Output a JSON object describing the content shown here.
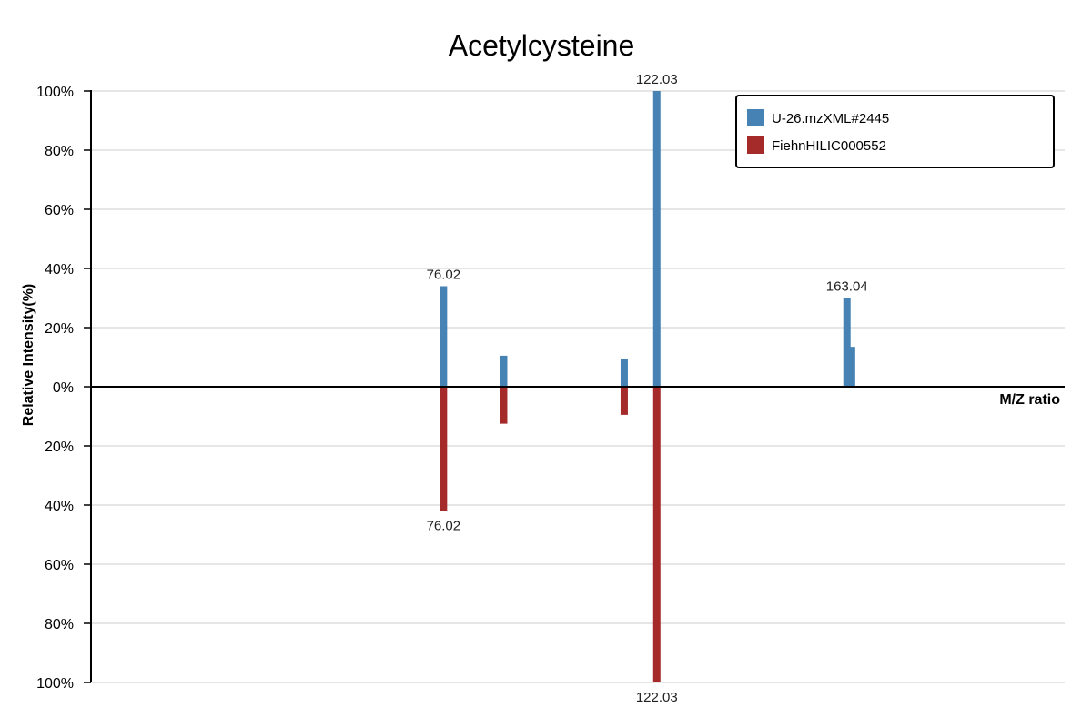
{
  "chart_data": {
    "type": "bar",
    "title": "Acetylcysteine",
    "xlabel": "M/Z ratio",
    "ylabel": "Relative Intensity(%)",
    "xlim": [
      0,
      210
    ],
    "ylim": [
      -100,
      100
    ],
    "yticks": [
      {
        "value": 100,
        "label": "100%"
      },
      {
        "value": 80,
        "label": "80%"
      },
      {
        "value": 60,
        "label": "60%"
      },
      {
        "value": 40,
        "label": "40%"
      },
      {
        "value": 20,
        "label": "20%"
      },
      {
        "value": 0,
        "label": "0%"
      },
      {
        "value": -20,
        "label": "20%"
      },
      {
        "value": -40,
        "label": "40%"
      },
      {
        "value": -60,
        "label": "60%"
      },
      {
        "value": -80,
        "label": "80%"
      },
      {
        "value": -100,
        "label": "100%"
      }
    ],
    "grid": true,
    "legend_position": "top-right",
    "colors": {
      "top": "#4682b4",
      "bottom": "#a52a2a"
    },
    "series": [
      {
        "name": "U-26.mzXML#2445",
        "direction": "up",
        "color": "#4682b4",
        "peaks": [
          {
            "mz": 76.02,
            "intensity": 34,
            "label": "76.02"
          },
          {
            "mz": 89.0,
            "intensity": 10.5
          },
          {
            "mz": 115.0,
            "intensity": 9.5
          },
          {
            "mz": 122.03,
            "intensity": 100,
            "label": "122.03"
          },
          {
            "mz": 163.04,
            "intensity": 30,
            "label": "163.04"
          },
          {
            "mz": 164.04,
            "intensity": 13.5
          }
        ]
      },
      {
        "name": "FiehnHILIC000552",
        "direction": "down",
        "color": "#a52a2a",
        "peaks": [
          {
            "mz": 76.02,
            "intensity": 42,
            "label": "76.02"
          },
          {
            "mz": 89.0,
            "intensity": 12.5
          },
          {
            "mz": 115.0,
            "intensity": 9.5
          },
          {
            "mz": 122.03,
            "intensity": 100,
            "label": "122.03"
          }
        ]
      }
    ]
  }
}
